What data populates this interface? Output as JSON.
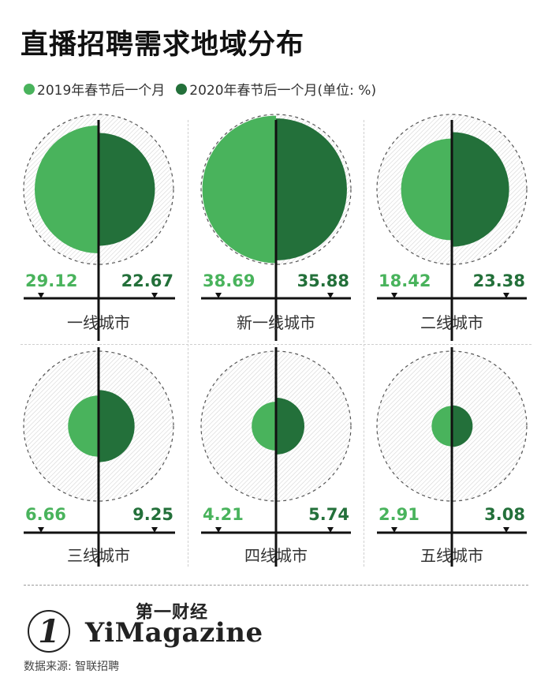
{
  "title": "直播招聘需求地域分布",
  "legend": {
    "item_2019": "2019年春节后一个月",
    "item_2020": "2020年春节后一个月(单位: %)",
    "color_2019": "#49b35c",
    "color_2020": "#23703a"
  },
  "chart_data": {
    "type": "pie",
    "title": "直播招聘需求地域分布",
    "unit": "%",
    "series_names": [
      "2019年春节后一个月",
      "2020年春节后一个月"
    ],
    "categories": [
      "一线城市",
      "新一线城市",
      "二线城市",
      "三线城市",
      "四线城市",
      "五线城市"
    ],
    "series": [
      {
        "name": "2019年春节后一个月",
        "values": [
          29.12,
          38.69,
          18.42,
          6.66,
          4.21,
          2.91
        ]
      },
      {
        "name": "2020年春节后一个月",
        "values": [
          22.67,
          35.88,
          23.38,
          9.25,
          5.74,
          3.08
        ]
      }
    ],
    "labels_2019": [
      "29.12",
      "38.69",
      "18.42",
      "6.66",
      "4.21",
      "2.91"
    ],
    "labels_2020": [
      "22.67",
      "35.88",
      "23.38",
      "9.25",
      "5.74",
      "3.08"
    ],
    "max_value": 40
  },
  "footer": {
    "logo_cn": "第一财经",
    "logo_en": "YiMagazine",
    "logo_mark": "1",
    "source": "数据来源: 智联招聘"
  }
}
